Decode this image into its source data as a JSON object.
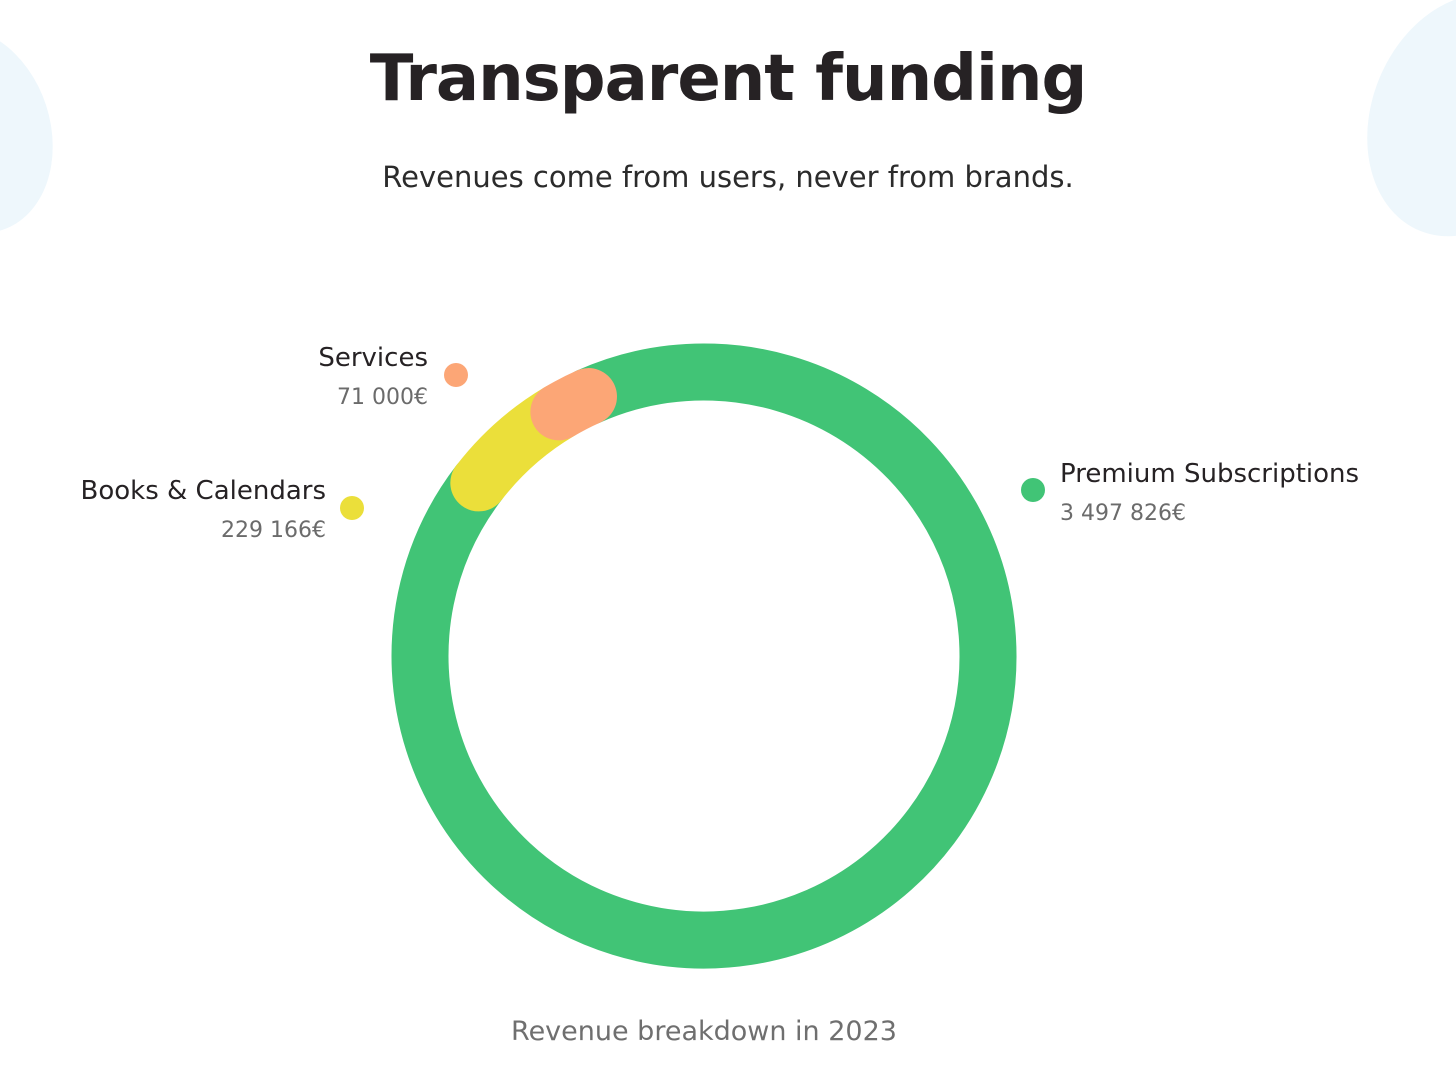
{
  "header": {
    "title": "Transparent funding",
    "subtitle": "Revenues come from users, never from brands."
  },
  "caption": "Revenue breakdown in 2023",
  "chart_data": {
    "type": "pie",
    "style": "donut",
    "series": [
      {
        "name": "Premium Subscriptions",
        "value": 3497826,
        "label": "3 497 826€",
        "color": "#41c476"
      },
      {
        "name": "Books & Calendars",
        "value": 229166,
        "label": "229 166€",
        "color": "#ebdf3a"
      },
      {
        "name": "Services",
        "value": 71000,
        "label": "71 000€",
        "color": "#fca676"
      }
    ]
  }
}
